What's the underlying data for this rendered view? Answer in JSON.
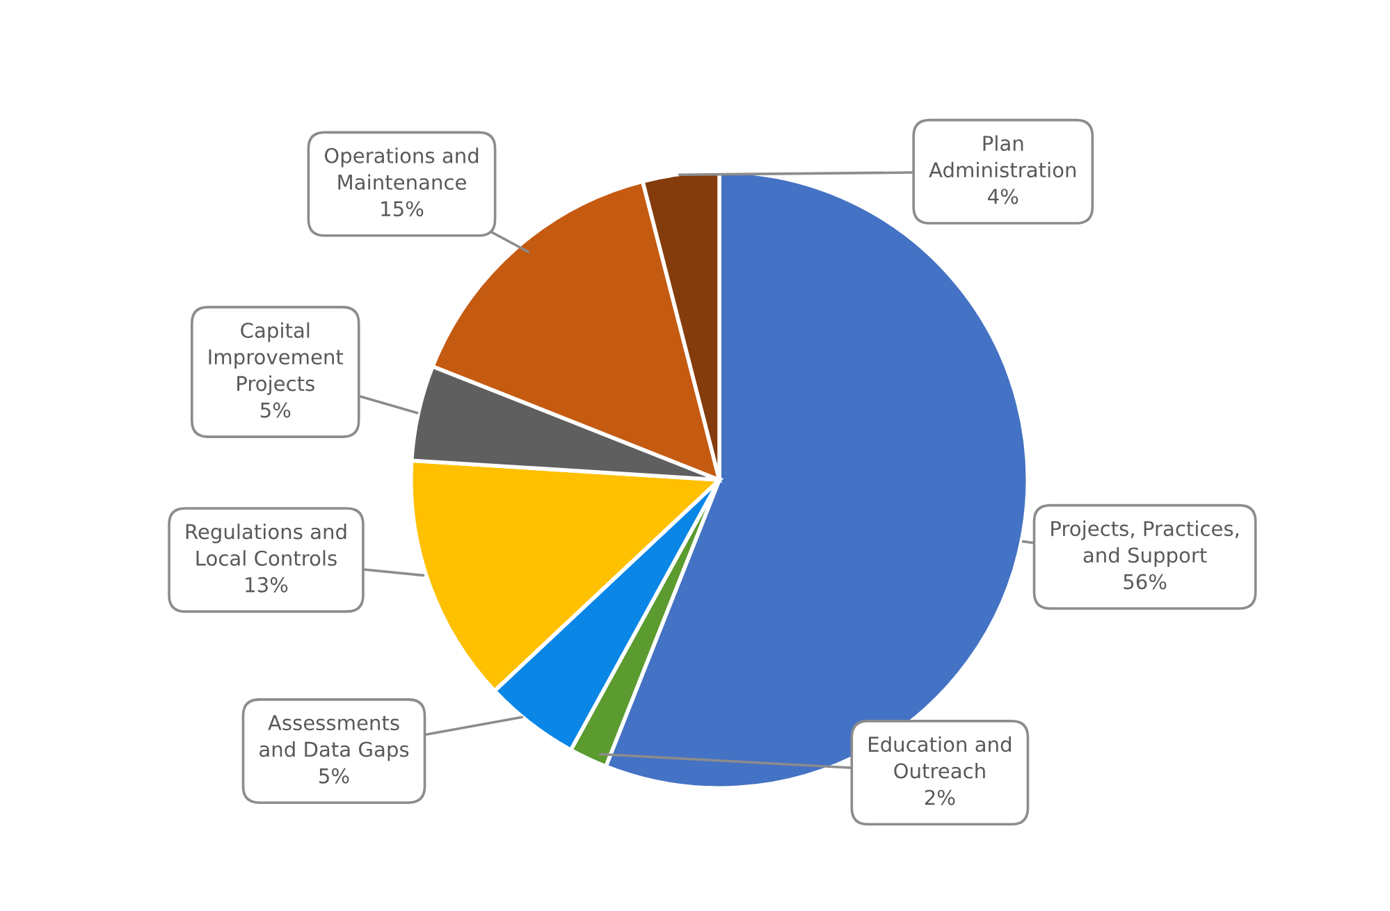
{
  "chart_data": {
    "type": "pie",
    "categories": [
      "Projects, Practices,\nand Support",
      "Education and\nOutreach",
      "Assessments\nand Data Gaps",
      "Regulations and\nLocal Controls",
      "Capital\nImprovement\nProjects",
      "Operations and\nMaintenance",
      "Plan\nAdministration"
    ],
    "values": [
      56,
      2,
      5,
      13,
      5,
      15,
      4
    ],
    "value_labels": [
      "56%",
      "2%",
      "5%",
      "13%",
      "5%",
      "15%",
      "4%"
    ],
    "colors": [
      "#4472c4",
      "#5b9b2f",
      "#0a86e6",
      "#ffc000",
      "#5f5f5f",
      "#c55a11",
      "#843c0c"
    ],
    "legend": false
  }
}
